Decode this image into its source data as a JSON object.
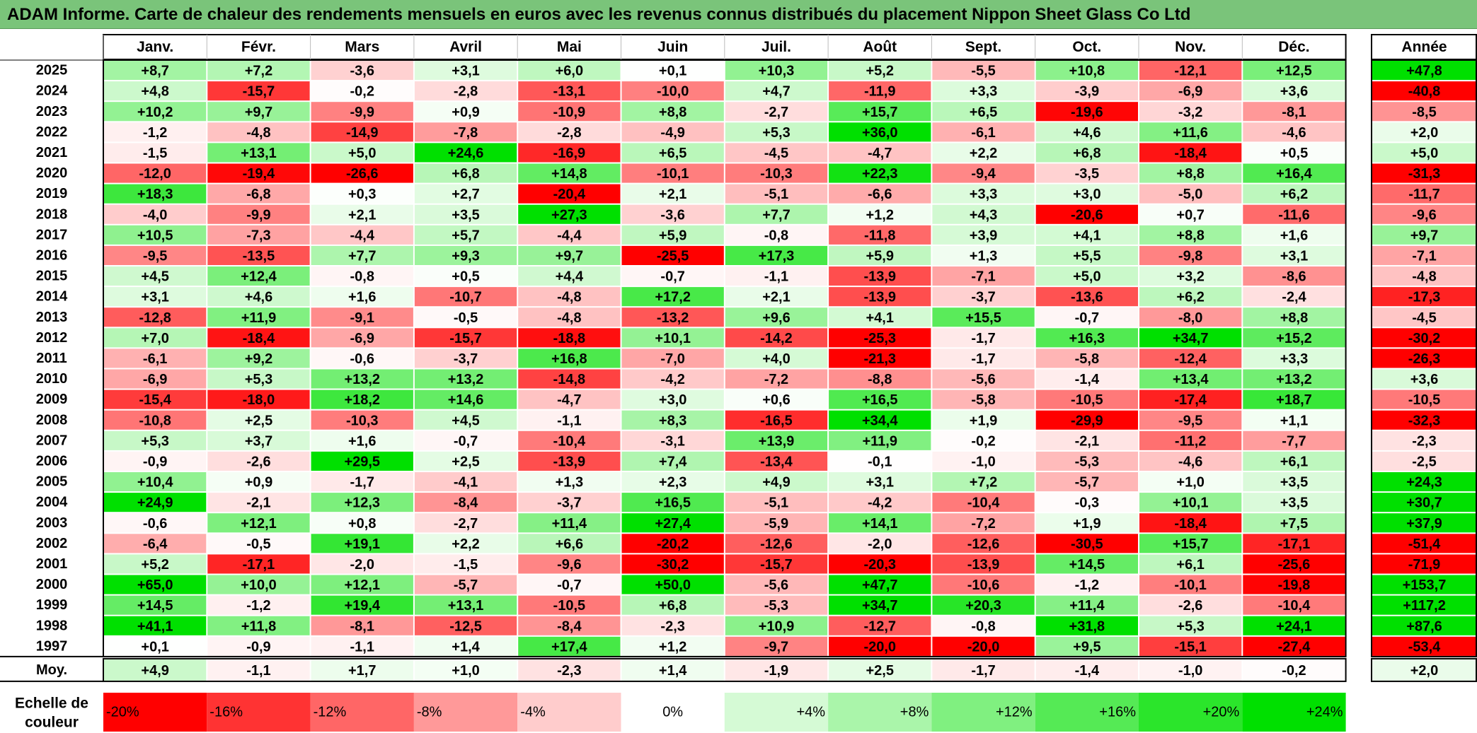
{
  "title": "ADAM Informe. Carte de chaleur des rendements mensuels en euros avec les revenus connus distribués du placement Nippon Sheet Glass Co Ltd",
  "chart_data": {
    "type": "heatmap",
    "title": "ADAM Informe. Carte de chaleur des rendements mensuels en euros avec les revenus connus distribués du placement Nippon Sheet Glass Co Ltd",
    "months": [
      "Janv.",
      "Févr.",
      "Mars",
      "Avril",
      "Mai",
      "Juin",
      "Juil.",
      "Août",
      "Sept.",
      "Oct.",
      "Nov.",
      "Déc."
    ],
    "year_header": "Année",
    "rows": [
      {
        "year": "2025",
        "values": [
          8.7,
          7.2,
          -3.6,
          3.1,
          6.0,
          0.1,
          10.3,
          5.2,
          -5.5,
          10.8,
          -12.1,
          12.5
        ],
        "annual": 47.8
      },
      {
        "year": "2024",
        "values": [
          4.8,
          -15.7,
          -0.2,
          -2.8,
          -13.1,
          -10.0,
          4.7,
          -11.9,
          3.3,
          -3.9,
          -6.9,
          3.6
        ],
        "annual": -40.8
      },
      {
        "year": "2023",
        "values": [
          10.2,
          9.7,
          -9.9,
          0.9,
          -10.9,
          8.8,
          -2.7,
          15.7,
          6.5,
          -19.6,
          -3.2,
          -8.1
        ],
        "annual": -8.5
      },
      {
        "year": "2022",
        "values": [
          -1.2,
          -4.8,
          -14.9,
          -7.8,
          -2.8,
          -4.9,
          5.3,
          36.0,
          -6.1,
          4.6,
          11.6,
          -4.6
        ],
        "annual": 2.0
      },
      {
        "year": "2021",
        "values": [
          -1.5,
          13.1,
          5.0,
          24.6,
          -16.9,
          6.5,
          -4.5,
          -4.7,
          2.2,
          6.8,
          -18.4,
          0.5
        ],
        "annual": 5.0
      },
      {
        "year": "2020",
        "values": [
          -12.0,
          -19.4,
          -26.6,
          6.8,
          14.8,
          -10.1,
          -10.3,
          22.3,
          -9.4,
          -3.5,
          8.8,
          16.4
        ],
        "annual": -31.3
      },
      {
        "year": "2019",
        "values": [
          18.3,
          -6.8,
          0.3,
          2.7,
          -20.4,
          2.1,
          -5.1,
          -6.6,
          3.3,
          3.0,
          -5.0,
          6.2
        ],
        "annual": -11.7
      },
      {
        "year": "2018",
        "values": [
          -4.0,
          -9.9,
          2.1,
          3.5,
          27.3,
          -3.6,
          7.7,
          1.2,
          4.3,
          -20.6,
          0.7,
          -11.6
        ],
        "annual": -9.6
      },
      {
        "year": "2017",
        "values": [
          10.5,
          -7.3,
          -4.4,
          5.7,
          -4.4,
          5.9,
          -0.8,
          -11.8,
          3.9,
          4.1,
          8.8,
          1.6
        ],
        "annual": 9.7
      },
      {
        "year": "2016",
        "values": [
          -9.5,
          -13.5,
          7.7,
          9.3,
          9.7,
          -25.5,
          17.3,
          5.9,
          1.3,
          5.5,
          -9.8,
          3.1
        ],
        "annual": -7.1
      },
      {
        "year": "2015",
        "values": [
          4.5,
          12.4,
          -0.8,
          0.5,
          4.4,
          -0.7,
          -1.1,
          -13.9,
          -7.1,
          5.0,
          3.2,
          -8.6
        ],
        "annual": -4.8
      },
      {
        "year": "2014",
        "values": [
          3.1,
          4.6,
          1.6,
          -10.7,
          -4.8,
          17.2,
          2.1,
          -13.9,
          -3.7,
          -13.6,
          6.2,
          -2.4
        ],
        "annual": -17.3
      },
      {
        "year": "2013",
        "values": [
          -12.8,
          11.9,
          -9.1,
          -0.5,
          -4.8,
          -13.2,
          9.6,
          4.1,
          15.5,
          -0.7,
          -8.0,
          8.8
        ],
        "annual": -4.5
      },
      {
        "year": "2012",
        "values": [
          7.0,
          -18.4,
          -6.9,
          -15.7,
          -18.8,
          10.1,
          -14.2,
          -25.3,
          -1.7,
          16.3,
          34.7,
          15.2
        ],
        "annual": -30.2
      },
      {
        "year": "2011",
        "values": [
          -6.1,
          9.2,
          -0.6,
          -3.7,
          16.8,
          -7.0,
          4.0,
          -21.3,
          -1.7,
          -5.8,
          -12.4,
          3.3
        ],
        "annual": -26.3
      },
      {
        "year": "2010",
        "values": [
          -6.9,
          5.3,
          13.2,
          13.2,
          -14.8,
          -4.2,
          -7.2,
          -8.8,
          -5.6,
          -1.4,
          13.4,
          13.2
        ],
        "annual": 3.6
      },
      {
        "year": "2009",
        "values": [
          -15.4,
          -18.0,
          18.2,
          14.6,
          -4.7,
          3.0,
          0.6,
          16.5,
          -5.8,
          -10.5,
          -17.4,
          18.7
        ],
        "annual": -10.5
      },
      {
        "year": "2008",
        "values": [
          -10.8,
          2.5,
          -10.3,
          4.5,
          -1.1,
          8.3,
          -16.5,
          34.4,
          1.9,
          -29.9,
          -9.5,
          1.1
        ],
        "annual": -32.3
      },
      {
        "year": "2007",
        "values": [
          5.3,
          3.7,
          1.6,
          -0.7,
          -10.4,
          -3.1,
          13.9,
          11.9,
          -0.2,
          -2.1,
          -11.2,
          -7.7
        ],
        "annual": -2.3
      },
      {
        "year": "2006",
        "values": [
          -0.9,
          -2.6,
          29.5,
          2.5,
          -13.9,
          7.4,
          -13.4,
          -0.1,
          -1.0,
          -5.3,
          -4.6,
          6.1
        ],
        "annual": -2.5
      },
      {
        "year": "2005",
        "values": [
          10.4,
          0.9,
          -1.7,
          -4.1,
          1.3,
          2.3,
          4.9,
          3.1,
          7.2,
          -5.7,
          1.0,
          3.5
        ],
        "annual": 24.3
      },
      {
        "year": "2004",
        "values": [
          24.9,
          -2.1,
          12.3,
          -8.4,
          -3.7,
          16.5,
          -5.1,
          -4.2,
          -10.4,
          -0.3,
          10.1,
          3.5
        ],
        "annual": 30.7
      },
      {
        "year": "2003",
        "values": [
          -0.6,
          12.1,
          0.8,
          -2.7,
          11.4,
          27.4,
          -5.9,
          14.1,
          -7.2,
          1.9,
          -18.4,
          7.5
        ],
        "annual": 37.9
      },
      {
        "year": "2002",
        "values": [
          -6.4,
          -0.5,
          19.1,
          2.2,
          6.6,
          -20.2,
          -12.6,
          -2.0,
          -12.6,
          -30.5,
          15.7,
          -17.1
        ],
        "annual": -51.4
      },
      {
        "year": "2001",
        "values": [
          5.2,
          -17.1,
          -2.0,
          -1.5,
          -9.6,
          -30.2,
          -15.7,
          -20.3,
          -13.9,
          14.5,
          6.1,
          -25.6
        ],
        "annual": -71.9
      },
      {
        "year": "2000",
        "values": [
          65.0,
          10.0,
          12.1,
          -5.7,
          -0.7,
          50.0,
          -5.6,
          47.7,
          -10.6,
          -1.2,
          -10.1,
          -19.8
        ],
        "annual": 153.7
      },
      {
        "year": "1999",
        "values": [
          14.5,
          -1.2,
          19.4,
          13.1,
          -10.5,
          6.8,
          -5.3,
          34.7,
          20.3,
          11.4,
          -2.6,
          -10.4
        ],
        "annual": 117.2
      },
      {
        "year": "1998",
        "values": [
          41.1,
          11.8,
          -8.1,
          -12.5,
          -8.4,
          -2.3,
          10.9,
          -12.7,
          -0.8,
          31.8,
          5.3,
          24.1
        ],
        "annual": 87.6
      },
      {
        "year": "1997",
        "values": [
          0.1,
          -0.9,
          -1.1,
          1.4,
          17.4,
          1.2,
          -9.7,
          -20.0,
          -20.0,
          9.5,
          -15.1,
          -27.4
        ],
        "annual": -53.4
      }
    ],
    "average": {
      "label": "Moy.",
      "values": [
        4.9,
        -1.1,
        1.7,
        1.0,
        -2.3,
        1.4,
        -1.9,
        2.5,
        -1.7,
        -1.4,
        -1.0,
        -0.2
      ],
      "annual": 2.0
    },
    "legend": {
      "label_line1": "Echelle de",
      "label_line2": "couleur",
      "stops": [
        {
          "label": "-20%",
          "value": -20
        },
        {
          "label": "-16%",
          "value": -16
        },
        {
          "label": "-12%",
          "value": -12
        },
        {
          "label": "-8%",
          "value": -8
        },
        {
          "label": "-4%",
          "value": -4
        },
        {
          "label": "0%",
          "value": 0
        },
        {
          "label": "+4%",
          "value": 4
        },
        {
          "label": "+8%",
          "value": 8
        },
        {
          "label": "+12%",
          "value": 12
        },
        {
          "label": "+16%",
          "value": 16
        },
        {
          "label": "+20%",
          "value": 20
        },
        {
          "label": "+24%",
          "value": 24
        }
      ]
    },
    "colors": {
      "negative_max": "#ff0000",
      "neutral": "#ffffff",
      "positive_max": "#00e000",
      "title_background": "#7ac47a"
    }
  }
}
